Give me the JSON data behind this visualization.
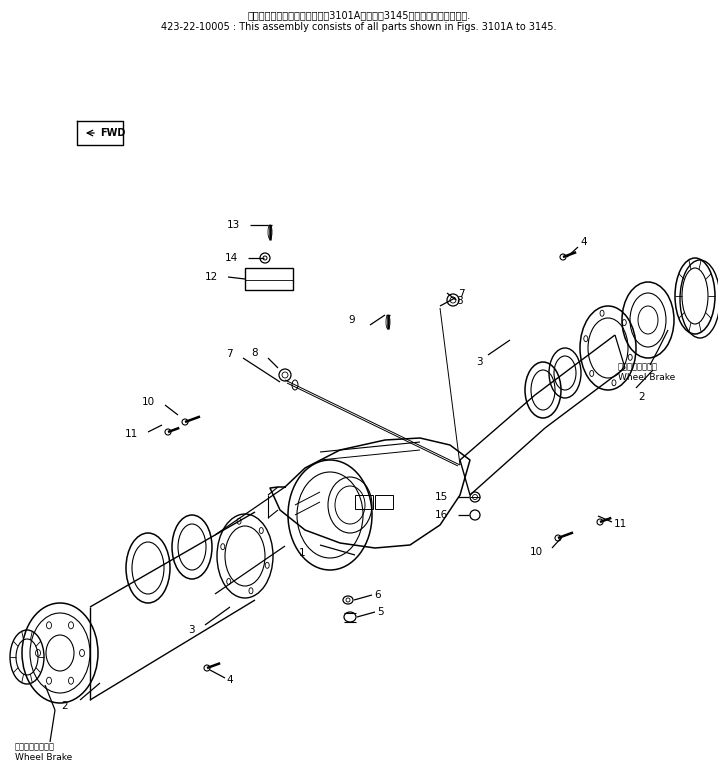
{
  "bg_color": "#ffffff",
  "header_line1": "このアセンブリの構成部品は第3101A図から第3145図の部品まで含みます.",
  "header_line2": "423-22-10005 : This assembly consists of all parts shown in Figs. 3101A to 3145.",
  "fwd_label": "FWD",
  "wheel_brake_jp": "ホイールブレーキ",
  "wheel_brake_en": "Wheel Brake",
  "line_color": "#000000",
  "text_color": "#000000"
}
